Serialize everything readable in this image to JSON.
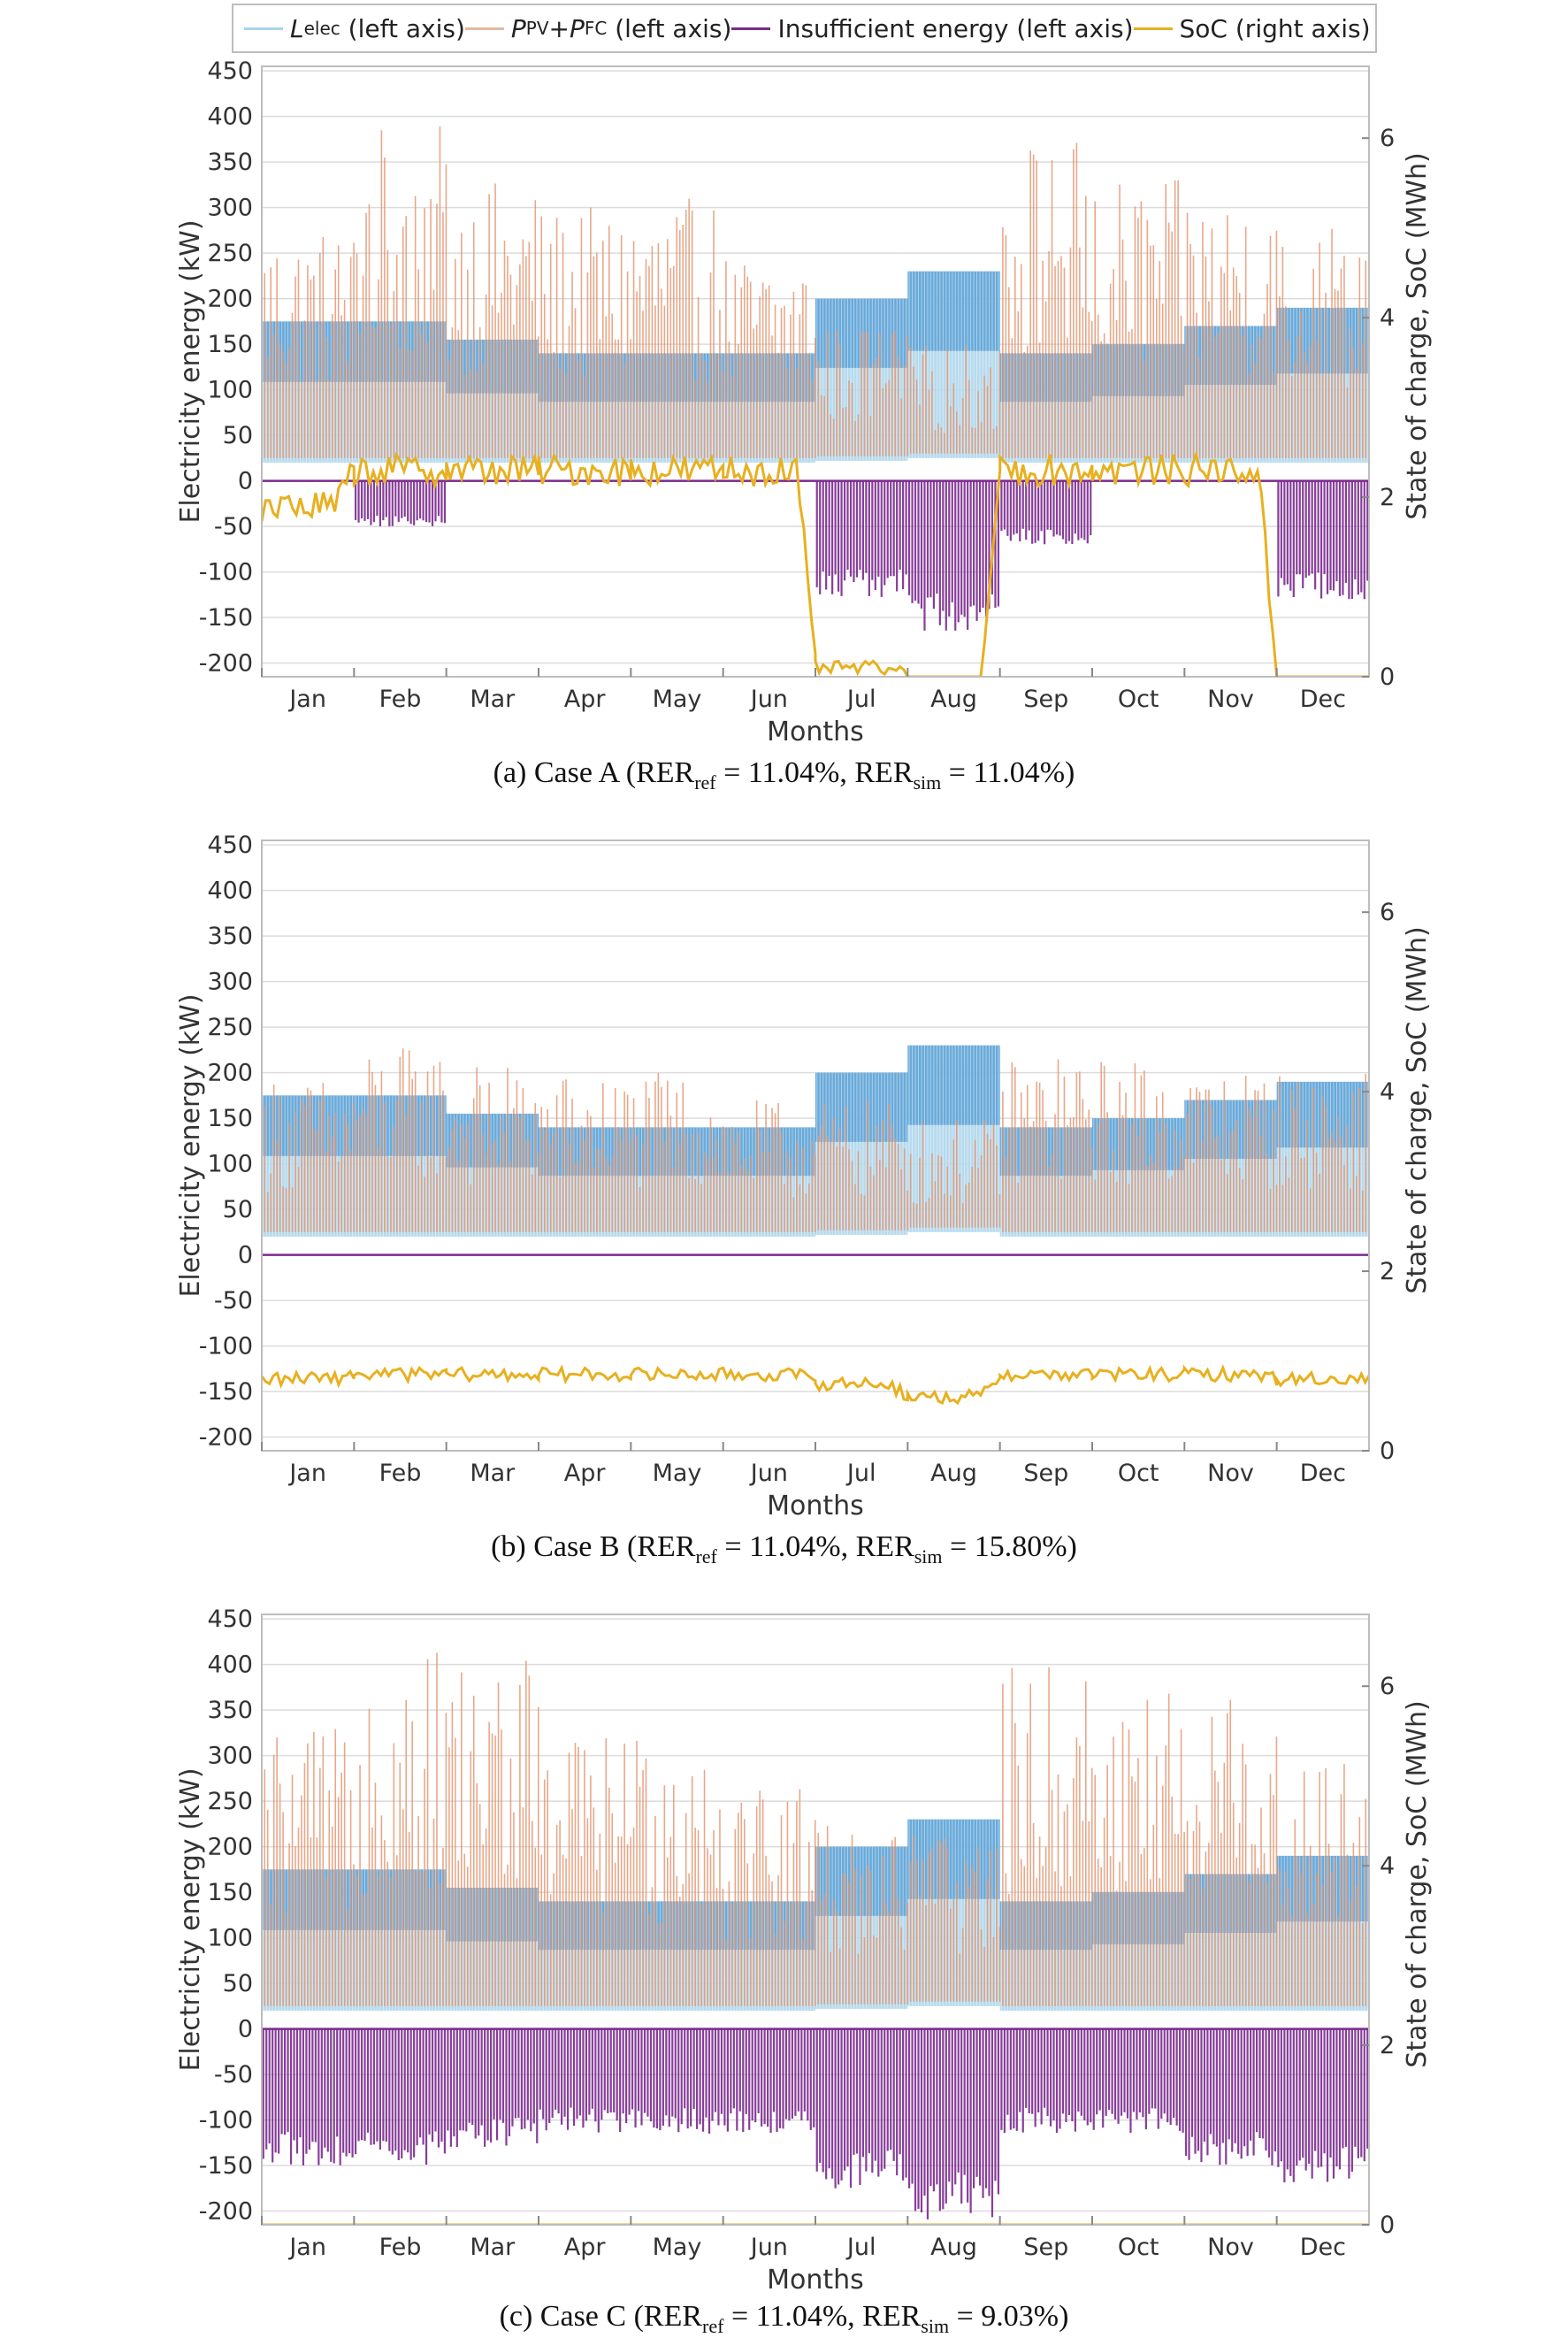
{
  "legend": {
    "l_elec": "L",
    "l_elec_sub": "elec",
    "l_elec_suffix": " (left axis)",
    "ppv": "P",
    "ppv_sub": "PV",
    "plus": "+",
    "pfc": "P",
    "pfc_sub": "FC",
    "pfc_suffix": " (left axis)",
    "insufficient": "Insufficient energy (left axis)",
    "soc": "SoC (right axis)"
  },
  "colors": {
    "elec_light": "#a9d3ea",
    "elec_dark": "#4f9ad3",
    "gen": "#e3936e",
    "insufficient": "#7b2a8e",
    "soc": "#e8b020",
    "grid": "#dcdcdc"
  },
  "chart_data": [
    {
      "type": "line",
      "caption": {
        "prefix": "(a) Case A (RER",
        "ref_sub": "ref",
        "mid": " = 11.04%, RER",
        "sim_sub": "sim",
        "suffix": " = 11.04%)"
      },
      "xlabel": "Months",
      "ylabel": "Electricity energy (kW)",
      "y2label": "State of charge, SoC (MWh)",
      "ylim": [
        -215,
        455
      ],
      "y2lim": [
        0,
        6.8
      ],
      "yticks": [
        "450",
        "400",
        "350",
        "300",
        "250",
        "200",
        "150",
        "100",
        "50",
        "0",
        "-50",
        "-100",
        "-150",
        "-200"
      ],
      "y2ticks": [
        "6",
        "4",
        "2",
        "0"
      ],
      "months": [
        "Jan",
        "Feb",
        "Mar",
        "Apr",
        "May",
        "Jun",
        "Jul",
        "Aug",
        "Sep",
        "Oct",
        "Nov",
        "Dec"
      ],
      "load_peak": [
        175,
        175,
        155,
        140,
        140,
        140,
        200,
        230,
        140,
        150,
        170,
        190
      ],
      "load_base": [
        20,
        20,
        20,
        20,
        20,
        20,
        22,
        25,
        20,
        20,
        20,
        20
      ],
      "gen_peak": [
        280,
        390,
        330,
        300,
        310,
        250,
        170,
        150,
        380,
        330,
        320,
        290
      ],
      "insufficient_min": [
        0,
        -50,
        0,
        0,
        0,
        0,
        -130,
        -165,
        -70,
        0,
        0,
        -130
      ],
      "soc_level": [
        1.9,
        2.3,
        2.3,
        2.3,
        2.3,
        2.3,
        0.1,
        0.0,
        2.3,
        2.3,
        2.3,
        0.0
      ]
    },
    {
      "type": "line",
      "caption": {
        "prefix": "(b) Case B (RER",
        "ref_sub": "ref",
        "mid": " = 11.04%, RER",
        "sim_sub": "sim",
        "suffix": " = 15.80%)"
      },
      "xlabel": "Months",
      "ylabel": "Electricity energy (kW)",
      "y2label": "State of charge, SoC (MWh)",
      "ylim": [
        -215,
        455
      ],
      "y2lim": [
        0,
        6.8
      ],
      "yticks": [
        "450",
        "400",
        "350",
        "300",
        "250",
        "200",
        "150",
        "100",
        "50",
        "0",
        "-50",
        "-100",
        "-150",
        "-200"
      ],
      "y2ticks": [
        "6",
        "4",
        "2",
        "0"
      ],
      "months": [
        "Jan",
        "Feb",
        "Mar",
        "Apr",
        "May",
        "Jun",
        "Jul",
        "Aug",
        "Sep",
        "Oct",
        "Nov",
        "Dec"
      ],
      "load_peak": [
        175,
        175,
        155,
        140,
        140,
        140,
        200,
        230,
        140,
        150,
        170,
        190
      ],
      "load_base": [
        20,
        20,
        20,
        20,
        20,
        20,
        22,
        25,
        20,
        20,
        20,
        20
      ],
      "gen_peak": [
        195,
        230,
        210,
        200,
        200,
        170,
        170,
        150,
        220,
        215,
        205,
        200
      ],
      "insufficient_min": [
        0,
        0,
        0,
        0,
        0,
        0,
        0,
        0,
        0,
        0,
        0,
        0
      ],
      "soc_level": [
        0.8,
        0.85,
        0.85,
        0.85,
        0.85,
        0.85,
        0.75,
        0.6,
        0.85,
        0.85,
        0.85,
        0.8
      ]
    },
    {
      "type": "line",
      "caption": {
        "prefix": "(c) Case C (RER",
        "ref_sub": "ref",
        "mid": " = 11.04%, RER",
        "sim_sub": "sim",
        "suffix": " = 9.03%)"
      },
      "xlabel": "Months",
      "ylabel": "Electricity energy (kW)",
      "y2label": "State of charge, SoC (MWh)",
      "ylim": [
        -215,
        455
      ],
      "y2lim": [
        0,
        6.8
      ],
      "yticks": [
        "450",
        "400",
        "350",
        "300",
        "250",
        "200",
        "150",
        "100",
        "50",
        "0",
        "-50",
        "-100",
        "-150",
        "-200"
      ],
      "y2ticks": [
        "6",
        "4",
        "2",
        "0"
      ],
      "months": [
        "Jan",
        "Feb",
        "Mar",
        "Apr",
        "May",
        "Jun",
        "Jul",
        "Aug",
        "Sep",
        "Oct",
        "Nov",
        "Dec"
      ],
      "load_peak": [
        175,
        175,
        155,
        140,
        140,
        140,
        200,
        230,
        140,
        150,
        170,
        190
      ],
      "load_base": [
        20,
        20,
        20,
        20,
        20,
        20,
        22,
        25,
        20,
        20,
        20,
        20
      ],
      "gen_peak": [
        330,
        420,
        410,
        330,
        330,
        280,
        230,
        220,
        400,
        380,
        370,
        300
      ],
      "insufficient_min": [
        -150,
        -150,
        -130,
        -115,
        -115,
        -115,
        -175,
        -210,
        -115,
        -115,
        -150,
        -170
      ],
      "soc_level": [
        0.0,
        0.0,
        0.0,
        0.0,
        0.0,
        0.0,
        0.0,
        0.0,
        0.0,
        0.0,
        0.0,
        0.0
      ]
    }
  ]
}
